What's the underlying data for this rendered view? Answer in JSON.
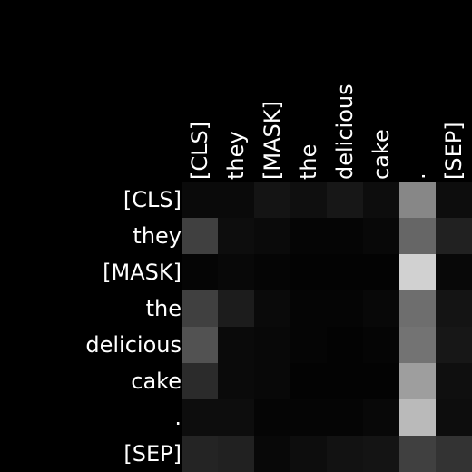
{
  "chart_data": {
    "type": "heatmap",
    "title": "",
    "xlabel": "",
    "ylabel": "",
    "x_labels": [
      "[CLS]",
      "they",
      "[MASK]",
      "the",
      "delicious",
      "cake",
      ".",
      "[SEP]"
    ],
    "y_labels": [
      "[CLS]",
      "they",
      "[MASK]",
      "the",
      "delicious",
      "cake",
      ".",
      "[SEP]"
    ],
    "colormap": "grayscale",
    "value_range": [
      0,
      1
    ],
    "grid": false,
    "values": [
      [
        0.04,
        0.04,
        0.08,
        0.06,
        0.09,
        0.05,
        0.53,
        0.05
      ],
      [
        0.25,
        0.05,
        0.04,
        0.02,
        0.02,
        0.03,
        0.4,
        0.13
      ],
      [
        0.02,
        0.03,
        0.02,
        0.01,
        0.01,
        0.01,
        0.82,
        0.03
      ],
      [
        0.25,
        0.11,
        0.04,
        0.02,
        0.02,
        0.03,
        0.43,
        0.08
      ],
      [
        0.32,
        0.04,
        0.03,
        0.02,
        0.01,
        0.02,
        0.45,
        0.09
      ],
      [
        0.17,
        0.04,
        0.03,
        0.01,
        0.01,
        0.01,
        0.62,
        0.06
      ],
      [
        0.05,
        0.05,
        0.02,
        0.02,
        0.02,
        0.03,
        0.73,
        0.05
      ],
      [
        0.14,
        0.13,
        0.03,
        0.05,
        0.07,
        0.08,
        0.25,
        0.2
      ]
    ]
  },
  "colors": {
    "background": "#000000",
    "text": "#ffffff",
    "cell_min": "#000000",
    "cell_max": "#ffffff"
  }
}
